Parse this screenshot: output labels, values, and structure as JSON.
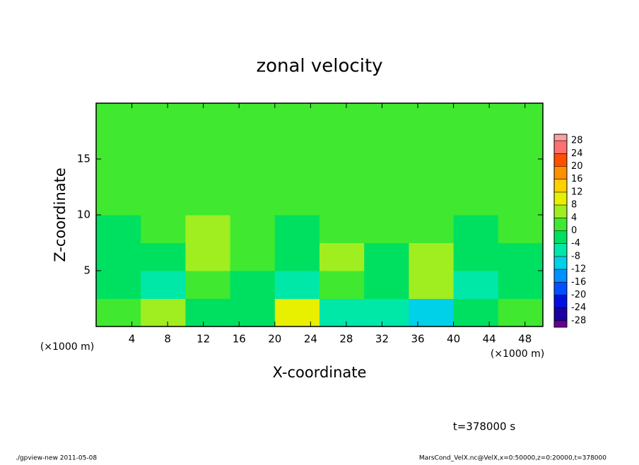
{
  "chart_data": {
    "type": "heatmap",
    "title": "zonal velocity",
    "xlabel": "X-coordinate",
    "ylabel": "Z-coordinate",
    "x_unit_label": "(×1000 m)",
    "xlim": [
      0,
      50
    ],
    "ylim": [
      0,
      20
    ],
    "xticks": [
      4,
      8,
      12,
      16,
      20,
      24,
      28,
      32,
      36,
      40,
      44,
      48
    ],
    "yticks": [
      5,
      10,
      15
    ],
    "x": [
      2.5,
      7.5,
      12.5,
      17.5,
      22.5,
      27.5,
      32.5,
      37.5,
      42.5,
      47.5
    ],
    "y": [
      1.25,
      3.75,
      6.25,
      8.75,
      11.25,
      13.75,
      16.25,
      18.75
    ],
    "z": [
      [
        2,
        4,
        -2,
        -4,
        8,
        -7,
        -6,
        -10,
        -3,
        3
      ],
      [
        -4,
        -7,
        2,
        -2,
        -5,
        3,
        -3,
        6,
        -7,
        -1
      ],
      [
        -2,
        -3,
        6,
        1,
        -3,
        5,
        -1,
        5,
        -4,
        -2
      ],
      [
        -1,
        1,
        4,
        0,
        -1,
        1,
        0,
        1,
        -1,
        0
      ],
      [
        0,
        1,
        1,
        0,
        0,
        1,
        0,
        0,
        1,
        0
      ],
      [
        1,
        0,
        1,
        1,
        0,
        1,
        1,
        0,
        1,
        1
      ],
      [
        1,
        1,
        0,
        1,
        1,
        1,
        0,
        1,
        1,
        1
      ],
      [
        1,
        1,
        1,
        1,
        0,
        1,
        1,
        1,
        1,
        1
      ]
    ],
    "colorbar": {
      "lim": [
        -30,
        30
      ],
      "ticks": [
        -28,
        -24,
        -20,
        -16,
        -12,
        -8,
        -4,
        0,
        4,
        8,
        12,
        16,
        20,
        24,
        28
      ],
      "levels": [
        -30,
        -28,
        -24,
        -20,
        -16,
        -12,
        -8,
        -4,
        0,
        4,
        8,
        12,
        16,
        20,
        24,
        28,
        30
      ],
      "colors": [
        "#6a0090",
        "#1a00a0",
        "#0010e0",
        "#0050ff",
        "#0090ff",
        "#00d0e8",
        "#00e8a8",
        "#00e060",
        "#40e830",
        "#a0ee20",
        "#e8f000",
        "#ffd000",
        "#ff9000",
        "#ff5000",
        "#ff7070",
        "#ffa0a0"
      ]
    },
    "annotation": "t=378000 s",
    "footer_left": "./gpview-new   2011-05-08",
    "footer_right": "MarsCond_VelX.nc@VelX,x=0:50000,z=0:20000,t=378000"
  }
}
